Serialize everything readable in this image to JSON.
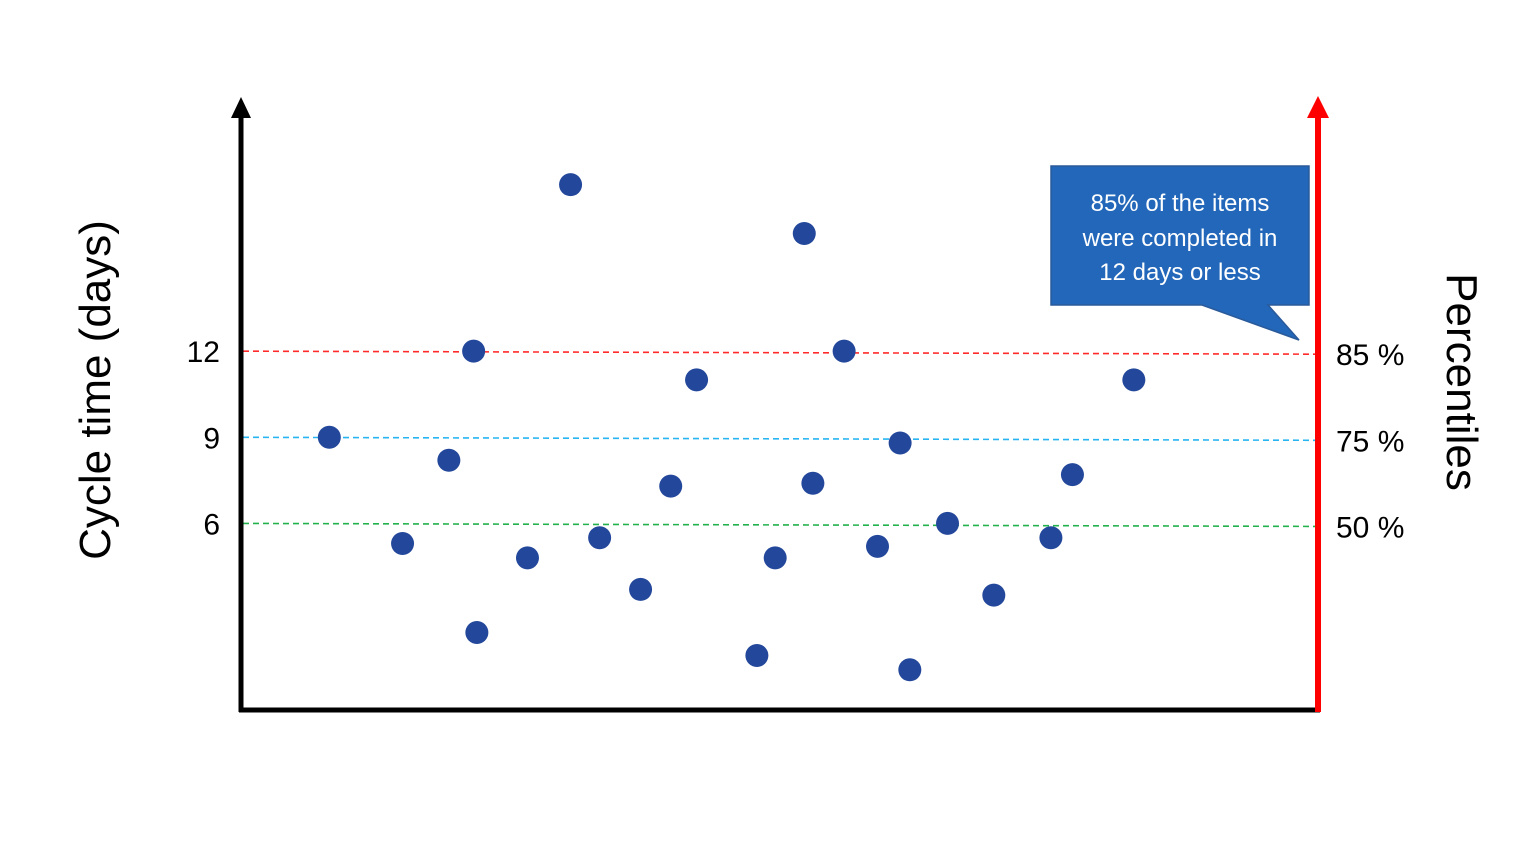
{
  "chart_data": {
    "type": "scatter",
    "title": "",
    "xlabel": "",
    "ylabel": "Cycle time (days)",
    "y2label": "Percentiles",
    "xlim": [
      0,
      100
    ],
    "ylim": [
      -0.5,
      20.75
    ],
    "grid": false,
    "yticks": [
      {
        "value": 12,
        "label": "12"
      },
      {
        "value": 9,
        "label": "9"
      },
      {
        "value": 6,
        "label": "6"
      }
    ],
    "percentile_lines": [
      {
        "value": 12,
        "label": "85 %",
        "color": "#ff2a2a"
      },
      {
        "value": 9,
        "label": "75 %",
        "color": "#27b4f0"
      },
      {
        "value": 6,
        "label": "50 %",
        "color": "#22b14c"
      }
    ],
    "points": [
      {
        "x": 8.2,
        "y": 9.0
      },
      {
        "x": 15.0,
        "y": 5.3
      },
      {
        "x": 19.3,
        "y": 8.2
      },
      {
        "x": 21.6,
        "y": 12.0
      },
      {
        "x": 21.9,
        "y": 2.2
      },
      {
        "x": 26.6,
        "y": 4.8
      },
      {
        "x": 30.6,
        "y": 17.8
      },
      {
        "x": 33.3,
        "y": 5.5
      },
      {
        "x": 37.1,
        "y": 3.7
      },
      {
        "x": 39.9,
        "y": 7.3
      },
      {
        "x": 42.3,
        "y": 11.0
      },
      {
        "x": 47.9,
        "y": 1.4
      },
      {
        "x": 49.6,
        "y": 4.8
      },
      {
        "x": 52.3,
        "y": 16.1
      },
      {
        "x": 53.1,
        "y": 7.4
      },
      {
        "x": 56.0,
        "y": 12.0
      },
      {
        "x": 59.1,
        "y": 5.2
      },
      {
        "x": 61.2,
        "y": 8.8
      },
      {
        "x": 62.1,
        "y": 0.9
      },
      {
        "x": 65.6,
        "y": 6.0
      },
      {
        "x": 69.9,
        "y": 3.5
      },
      {
        "x": 75.2,
        "y": 5.5
      },
      {
        "x": 77.2,
        "y": 7.7
      },
      {
        "x": 82.9,
        "y": 11.0
      }
    ],
    "annotation": {
      "lines": [
        "85% of the items",
        "were completed in",
        "12 days or less"
      ]
    },
    "colors": {
      "point": "#23479a",
      "left_axis": "#000000",
      "right_axis": "#ff0000",
      "callout": "#2267b9"
    }
  }
}
